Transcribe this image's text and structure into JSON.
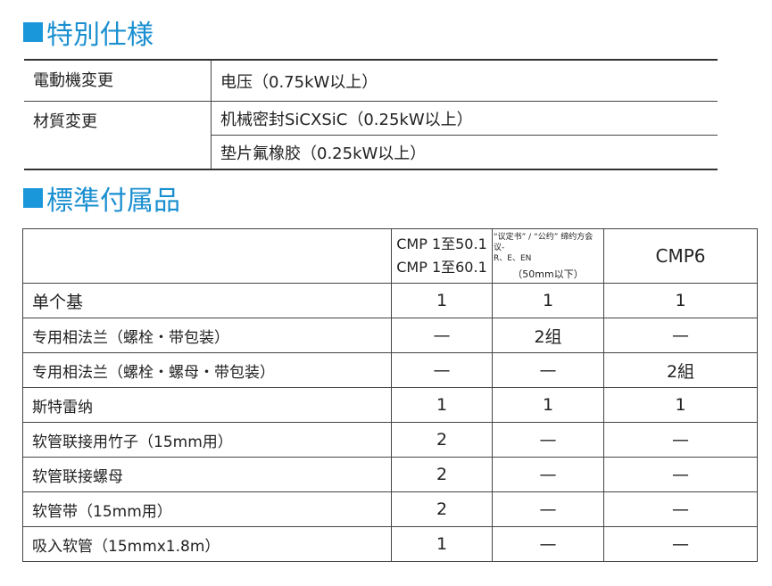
{
  "special": {
    "title": "特別仕様",
    "rows": [
      {
        "label": "電動機変更",
        "values": [
          "电压（0.75kW以上）"
        ]
      },
      {
        "label": "材質変更",
        "values": [
          "机械密封SiCXSiC（0.25kW以上）",
          "垫片氟橡胶（0.25kW以上）"
        ]
      }
    ]
  },
  "accessories": {
    "title": "標準付属品",
    "headers": {
      "col1_line1": "CMP 1至50.1",
      "col1_line2": "CMP 1至60.1",
      "col2_line1": "“议定书” / “公约” 缔约方会议-",
      "col2_line2": "R、E、EN",
      "col2_line3": "（50mm以下）",
      "col3": "CMP6"
    },
    "rows": [
      {
        "name": "单个基",
        "v": [
          "1",
          "1",
          "1"
        ]
      },
      {
        "name": "专用相法兰（螺栓・带包装）",
        "v": [
          "—",
          "2组",
          "—"
        ]
      },
      {
        "name": "专用相法兰（螺栓・螺母・带包装）",
        "v": [
          "—",
          "—",
          "2組"
        ]
      },
      {
        "name": "斯特雷纳",
        "v": [
          "1",
          "1",
          "1"
        ]
      },
      {
        "name": "软管联接用竹子（15mm用）",
        "v": [
          "2",
          "—",
          "—"
        ]
      },
      {
        "name": "软管联接螺母",
        "v": [
          "2",
          "—",
          "—"
        ]
      },
      {
        "name": "软管带（15mm用）",
        "v": [
          "2",
          "—",
          "—"
        ]
      },
      {
        "name": "吸入软管（15mmx1.8m）",
        "v": [
          "1",
          "—",
          "—"
        ]
      }
    ]
  }
}
